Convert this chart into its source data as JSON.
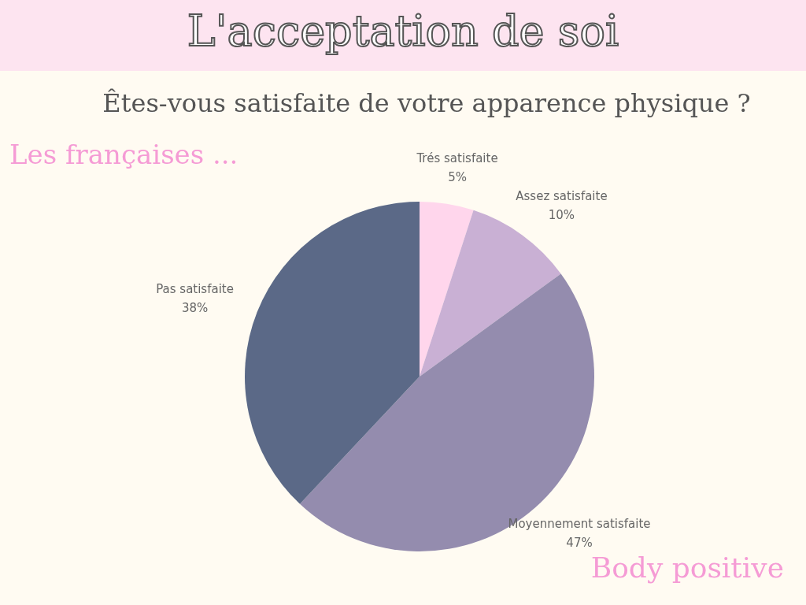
{
  "chart_data": {
    "type": "pie",
    "title": "L'acceptation de soi",
    "subtitle": "Êtes-vous satisfaite de votre apparence physique ?",
    "categories": [
      "Trés satisfaite",
      "Assez satisfaite",
      "Moyennement satisfaite",
      "Pas satisfaite"
    ],
    "values": [
      5,
      10,
      47,
      38
    ],
    "colors": [
      "#ffd6ec",
      "#c9b0d4",
      "#948cae",
      "#5b6987"
    ],
    "value_labels": [
      "5%",
      "10%",
      "47%",
      "38%"
    ],
    "annotations": [
      "Les françaises ...",
      "Body positive"
    ],
    "legend": false
  }
}
